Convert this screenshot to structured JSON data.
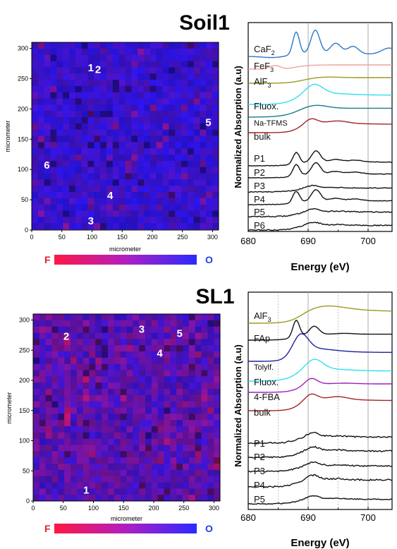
{
  "panels": [
    {
      "title": "Soil1",
      "map": {
        "xlabel": "micrometer",
        "ylabel": "micrometer",
        "xticks": [
          "0",
          "50",
          "100",
          "150",
          "200",
          "250",
          "300"
        ],
        "yticks": [
          "0",
          "50",
          "100",
          "150",
          "200",
          "250",
          "300"
        ],
        "points": [
          {
            "label": "1",
            "x": 98,
            "y": 268
          },
          {
            "label": "2",
            "x": 110,
            "y": 265
          },
          {
            "label": "3",
            "x": 98,
            "y": 15
          },
          {
            "label": "4",
            "x": 130,
            "y": 57
          },
          {
            "label": "5",
            "x": 293,
            "y": 178
          },
          {
            "label": "6",
            "x": 25,
            "y": 107
          }
        ],
        "colorbar": {
          "left": "F",
          "right": "O",
          "left_color": "#ff1744",
          "right_color": "#2a2aff"
        }
      },
      "spectra": {
        "ylabel": "Normalized Absorption (a.u)",
        "xlabel": "Energy (eV)",
        "xticks": [
          "680",
          "690",
          "700"
        ],
        "xlim": [
          680,
          704
        ],
        "vlines": [
          690,
          700
        ],
        "labels": [
          {
            "text": "CaF",
            "sub": "2",
            "color": "#2a78c8"
          },
          {
            "text": "FeF",
            "sub": "3",
            "color": "#f4a0a0"
          },
          {
            "text": "AlF",
            "sub": "3",
            "color": "#9a9a22"
          },
          {
            "text": "Fluox.",
            "sub": "",
            "color": "#2fe0f0"
          },
          {
            "text": "Na-TFMS",
            "sub": "",
            "color": "#1a7a8a"
          },
          {
            "text": "bulk",
            "sub": "",
            "color": "#a32424"
          },
          {
            "text": "P1",
            "sub": "",
            "color": "#111111"
          },
          {
            "text": "P2",
            "sub": "",
            "color": "#111111"
          },
          {
            "text": "P3",
            "sub": "",
            "color": "#111111"
          },
          {
            "text": "P4",
            "sub": "",
            "color": "#111111"
          },
          {
            "text": "P5",
            "sub": "",
            "color": "#111111"
          },
          {
            "text": "P6",
            "sub": "",
            "color": "#111111"
          }
        ]
      }
    },
    {
      "title": "SL1",
      "map": {
        "xlabel": "micrometer",
        "ylabel": "micrometer",
        "xticks": [
          "0",
          "50",
          "100",
          "150",
          "200",
          "250",
          "300"
        ],
        "yticks": [
          "0",
          "50",
          "100",
          "150",
          "200",
          "250",
          "300"
        ],
        "points": [
          {
            "label": "1",
            "x": 88,
            "y": 18
          },
          {
            "label": "2",
            "x": 55,
            "y": 273
          },
          {
            "label": "3",
            "x": 180,
            "y": 285
          },
          {
            "label": "4",
            "x": 210,
            "y": 245
          },
          {
            "label": "5",
            "x": 243,
            "y": 278
          }
        ],
        "colorbar": {
          "left": "F",
          "right": "O",
          "left_color": "#ff1744",
          "right_color": "#2a2aff"
        }
      },
      "spectra": {
        "ylabel": "Normalized Absorption (a.u)",
        "xlabel": "Energy (eV)",
        "xticks": [
          "680",
          "690",
          "700"
        ],
        "xlim": [
          680,
          704
        ],
        "vlines": [
          690,
          700
        ],
        "labels": [
          {
            "text": "AlF",
            "sub": "3",
            "color": "#9a9a22"
          },
          {
            "text": "FAp",
            "sub": "",
            "color": "#111111"
          },
          {
            "text": "Tolylf.",
            "sub": "",
            "color": "#2020a0"
          },
          {
            "text": "Fluox.",
            "sub": "",
            "color": "#2fe0f0"
          },
          {
            "text": "4-FBA",
            "sub": "",
            "color": "#9a20b8"
          },
          {
            "text": "bulk",
            "sub": "",
            "color": "#a32424"
          },
          {
            "text": "P1",
            "sub": "",
            "color": "#111111"
          },
          {
            "text": "P2",
            "sub": "",
            "color": "#111111"
          },
          {
            "text": "P3",
            "sub": "",
            "color": "#111111"
          },
          {
            "text": "P4",
            "sub": "",
            "color": "#111111"
          },
          {
            "text": "P5",
            "sub": "",
            "color": "#111111"
          }
        ]
      }
    }
  ],
  "chart_data": [
    {
      "type": "heatmap",
      "title": "Soil1",
      "xlabel": "micrometer",
      "ylabel": "micrometer",
      "xlim": [
        0,
        310
      ],
      "ylim": [
        0,
        310
      ],
      "colorscale": [
        "F",
        "O"
      ],
      "points": [
        {
          "label": "1",
          "x": 98,
          "y": 268
        },
        {
          "label": "2",
          "x": 110,
          "y": 265
        },
        {
          "label": "3",
          "x": 98,
          "y": 15
        },
        {
          "label": "4",
          "x": 130,
          "y": 57
        },
        {
          "label": "5",
          "x": 293,
          "y": 178
        },
        {
          "label": "6",
          "x": 25,
          "y": 107
        }
      ]
    },
    {
      "type": "line",
      "xlabel": "Energy (eV)",
      "ylabel": "Normalized Absorption (a.u)",
      "xlim": [
        680,
        704
      ],
      "series": [
        "CaF2",
        "FeF3",
        "AlF3",
        "Fluox.",
        "Na-TFMS",
        "bulk",
        "P1",
        "P2",
        "P3",
        "P4",
        "P5",
        "P6"
      ]
    },
    {
      "type": "heatmap",
      "title": "SL1",
      "xlabel": "micrometer",
      "ylabel": "micrometer",
      "xlim": [
        0,
        310
      ],
      "ylim": [
        0,
        310
      ],
      "colorscale": [
        "F",
        "O"
      ],
      "points": [
        {
          "label": "1",
          "x": 88,
          "y": 18
        },
        {
          "label": "2",
          "x": 55,
          "y": 273
        },
        {
          "label": "3",
          "x": 180,
          "y": 285
        },
        {
          "label": "4",
          "x": 210,
          "y": 245
        },
        {
          "label": "5",
          "x": 243,
          "y": 278
        }
      ]
    },
    {
      "type": "line",
      "xlabel": "Energy (eV)",
      "ylabel": "Normalized Absorption (a.u)",
      "xlim": [
        680,
        704
      ],
      "series": [
        "AlF3",
        "FAp",
        "Tolylf.",
        "Fluox.",
        "4-FBA",
        "bulk",
        "P1",
        "P2",
        "P3",
        "P4",
        "P5"
      ]
    }
  ]
}
